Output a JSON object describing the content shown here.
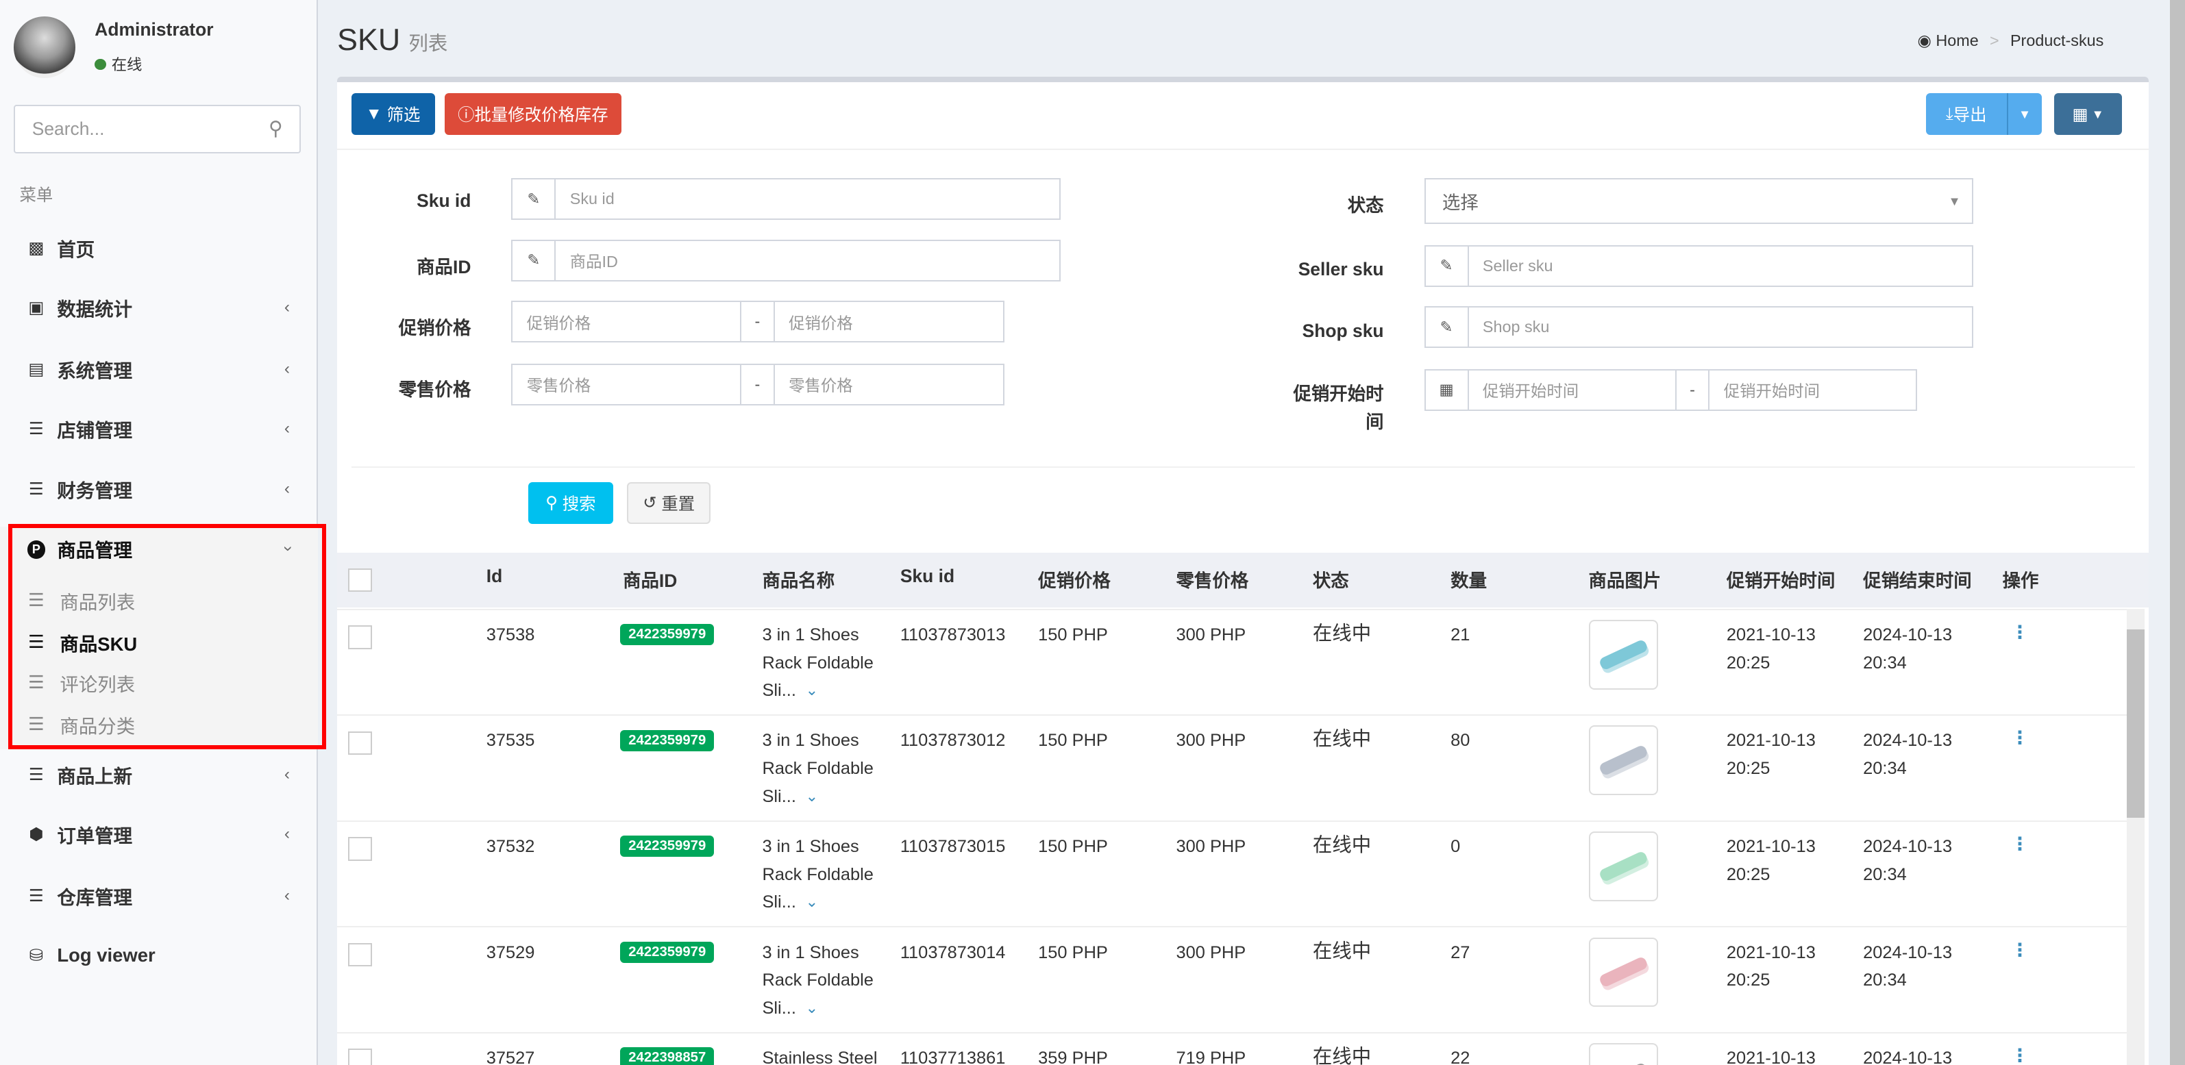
{
  "user": {
    "name": "Administrator",
    "status": "在线"
  },
  "sidebar": {
    "search_placeholder": "Search...",
    "menu_header": "菜单",
    "items": [
      {
        "label": "首页",
        "icon": "bar-chart-icon"
      },
      {
        "label": "数据统计",
        "icon": "desktop-icon"
      },
      {
        "label": "系统管理",
        "icon": "server-icon"
      },
      {
        "label": "店铺管理",
        "icon": "bars-icon"
      },
      {
        "label": "财务管理",
        "icon": "bars-icon"
      },
      {
        "label": "商品管理",
        "icon": "product-hunt-icon",
        "expanded": true,
        "children": [
          {
            "label": "商品列表"
          },
          {
            "label": "商品SKU",
            "active": true
          },
          {
            "label": "评论列表"
          },
          {
            "label": "商品分类"
          }
        ]
      },
      {
        "label": "商品上新",
        "icon": "bars-icon"
      },
      {
        "label": "订单管理",
        "icon": "first-order-icon"
      },
      {
        "label": "仓库管理",
        "icon": "bars-icon"
      },
      {
        "label": "Log viewer",
        "icon": "database-icon"
      }
    ]
  },
  "header": {
    "title": "SKU",
    "subtitle": "列表",
    "breadcrumb": [
      "Home",
      "Product-skus"
    ]
  },
  "toolbar": {
    "filter": "筛选",
    "batch": "批量修改价格库存",
    "export": "导出"
  },
  "filters": {
    "sku_id": {
      "label": "Sku id",
      "placeholder": "Sku id"
    },
    "product_id": {
      "label": "商品ID",
      "placeholder": "商品ID"
    },
    "promo_price": {
      "label": "促销价格",
      "placeholder_from": "促销价格",
      "placeholder_to": "促销价格"
    },
    "retail_price": {
      "label": "零售价格",
      "placeholder_from": "零售价格",
      "placeholder_to": "零售价格"
    },
    "status": {
      "label": "状态",
      "placeholder": "选择"
    },
    "seller_sku": {
      "label": "Seller sku",
      "placeholder": "Seller sku"
    },
    "shop_sku": {
      "label": "Shop sku",
      "placeholder": "Shop sku"
    },
    "promo_start": {
      "label": "促销开始时间",
      "placeholder_from": "促销开始时间",
      "placeholder_to": "促销开始时间"
    },
    "range_sep": "-",
    "search": "搜索",
    "reset": "重置"
  },
  "table": {
    "columns": [
      "Id",
      "商品ID",
      "商品名称",
      "Sku id",
      "促销价格",
      "零售价格",
      "状态",
      "数量",
      "商品图片",
      "促销开始时间",
      "促销结束时间",
      "操作"
    ],
    "rows": [
      {
        "id": "37538",
        "product_id": "2422359979",
        "name": [
          "3 in 1 Shoes",
          "Rack Foldable",
          "Sli..."
        ],
        "sku_id": "11037873013",
        "promo": "150 PHP",
        "retail": "300 PHP",
        "status": "在线中",
        "qty": "21",
        "img_color": "#7ec8d8",
        "start": [
          "2021-10-13",
          "20:25"
        ],
        "end": [
          "2024-10-13",
          "20:34"
        ]
      },
      {
        "id": "37535",
        "product_id": "2422359979",
        "name": [
          "3 in 1 Shoes",
          "Rack Foldable",
          "Sli..."
        ],
        "sku_id": "11037873012",
        "promo": "150 PHP",
        "retail": "300 PHP",
        "status": "在线中",
        "qty": "80",
        "img_color": "#b8c0cc",
        "start": [
          "2021-10-13",
          "20:25"
        ],
        "end": [
          "2024-10-13",
          "20:34"
        ]
      },
      {
        "id": "37532",
        "product_id": "2422359979",
        "name": [
          "3 in 1 Shoes",
          "Rack Foldable",
          "Sli..."
        ],
        "sku_id": "11037873015",
        "promo": "150 PHP",
        "retail": "300 PHP",
        "status": "在线中",
        "qty": "0",
        "img_color": "#a8e0c4",
        "start": [
          "2021-10-13",
          "20:25"
        ],
        "end": [
          "2024-10-13",
          "20:34"
        ]
      },
      {
        "id": "37529",
        "product_id": "2422359979",
        "name": [
          "3 in 1 Shoes",
          "Rack Foldable",
          "Sli..."
        ],
        "sku_id": "11037873014",
        "promo": "150 PHP",
        "retail": "300 PHP",
        "status": "在线中",
        "qty": "27",
        "img_color": "#eab4bd",
        "start": [
          "2021-10-13",
          "20:25"
        ],
        "end": [
          "2024-10-13",
          "20:34"
        ]
      },
      {
        "id": "37527",
        "product_id": "2422398857",
        "name": [
          "Stainless Steel"
        ],
        "sku_id": "11037713861",
        "promo": "359 PHP",
        "retail": "719 PHP",
        "status": "在线中",
        "qty": "22",
        "img_color": "#9a9a9a",
        "start": [
          "2021-10-13"
        ],
        "end": [
          "2024-10-13"
        ]
      }
    ]
  },
  "colors": {
    "primary": "#0f63a8",
    "danger": "#dd4b39",
    "export": "#55acee",
    "columns_btn": "#3c6f98",
    "badge": "#00a65a",
    "highlight": "#ff0000"
  }
}
